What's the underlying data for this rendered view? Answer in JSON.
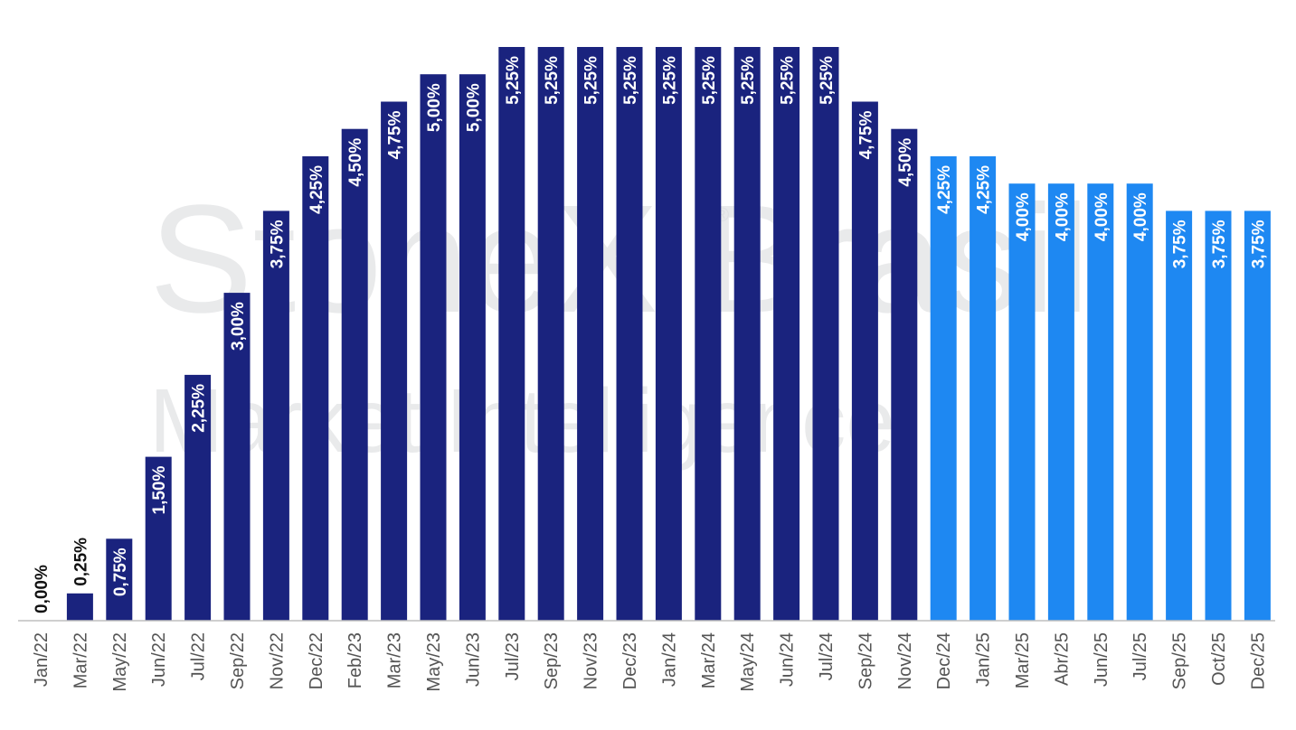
{
  "watermark": {
    "line1": "StoneX Brasil",
    "line2": "Market Intelligence",
    "mark": "®"
  },
  "colors": {
    "actual": "#1a237e",
    "forecast": "#1e88f2",
    "label_on_bar": "#ffffff",
    "label_outside": "#111111",
    "axis": "#bfbfbf"
  },
  "chart_data": {
    "type": "bar",
    "title": "",
    "xlabel": "",
    "ylabel": "",
    "ylim": [
      0,
      5.25
    ],
    "grid": false,
    "categories": [
      "Jan/22",
      "Mar/22",
      "May/22",
      "Jun/22",
      "Jul/22",
      "Sep/22",
      "Nov/22",
      "Dec/22",
      "Feb/23",
      "Mar/23",
      "May/23",
      "Jun/23",
      "Jul/23",
      "Sep/23",
      "Nov/23",
      "Dec/23",
      "Jan/24",
      "Mar/24",
      "May/24",
      "Jun/24",
      "Jul/24",
      "Sep/24",
      "Nov/24",
      "Dec/24",
      "Jan/25",
      "Mar/25",
      "Abr/25",
      "Jun/25",
      "Jul/25",
      "Sep/25",
      "Oct/25",
      "Dec/25"
    ],
    "values": [
      0.0,
      0.25,
      0.75,
      1.5,
      2.25,
      3.0,
      3.75,
      4.25,
      4.5,
      4.75,
      5.0,
      5.0,
      5.25,
      5.25,
      5.25,
      5.25,
      5.25,
      5.25,
      5.25,
      5.25,
      5.25,
      4.75,
      4.5,
      4.25,
      4.25,
      4.0,
      4.0,
      4.0,
      4.0,
      3.75,
      3.75,
      3.75
    ],
    "data_labels": [
      "0,00%",
      "0,25%",
      "0,75%",
      "1,50%",
      "2,25%",
      "3,00%",
      "3,75%",
      "4,25%",
      "4,50%",
      "4,75%",
      "5,00%",
      "5,00%",
      "5,25%",
      "5,25%",
      "5,25%",
      "5,25%",
      "5,25%",
      "5,25%",
      "5,25%",
      "5,25%",
      "5,25%",
      "4,75%",
      "4,50%",
      "4,25%",
      "4,25%",
      "4,00%",
      "4,00%",
      "4,00%",
      "4,00%",
      "3,75%",
      "3,75%",
      "3,75%"
    ],
    "forecast": [
      false,
      false,
      false,
      false,
      false,
      false,
      false,
      false,
      false,
      false,
      false,
      false,
      false,
      false,
      false,
      false,
      false,
      false,
      false,
      false,
      false,
      false,
      false,
      true,
      true,
      true,
      true,
      true,
      true,
      true,
      true,
      true
    ]
  }
}
